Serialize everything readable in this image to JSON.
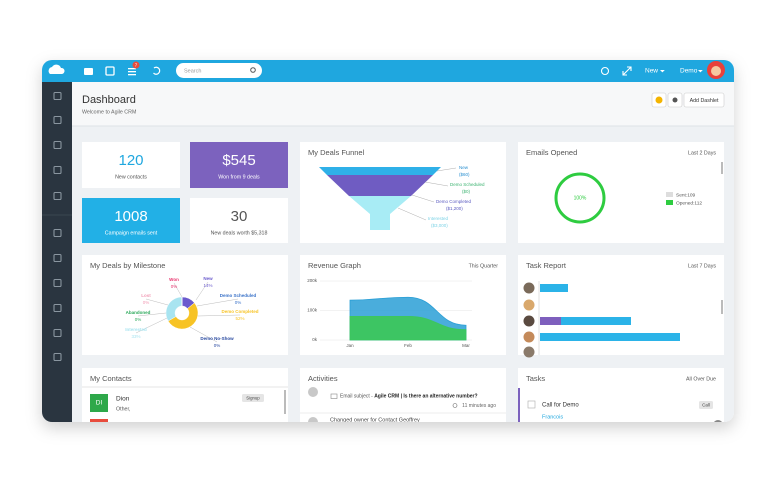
{
  "topbar": {
    "notification_count": "7",
    "search_placeholder": "Search",
    "new_menu": "New",
    "user_menu": "Demo"
  },
  "header": {
    "title": "Dashboard",
    "subtitle": "Welcome to Agile CRM",
    "add_button": "Add Dashlet"
  },
  "stats": [
    {
      "value": "120",
      "label": "New contacts"
    },
    {
      "value": "$545",
      "label": "Won from 9 deals"
    },
    {
      "value": "1008",
      "label": "Campaign emails sent"
    },
    {
      "value": "30",
      "label": "New deals worth $5,318"
    }
  ],
  "deals_funnel": {
    "title": "My Deals Funnel",
    "stages": [
      {
        "name": "New",
        "amount": "($60)"
      },
      {
        "name": "Demo Scheduled",
        "amount": "($0)"
      },
      {
        "name": "Demo Completed",
        "amount": "($1,200)"
      },
      {
        "name": "Interested",
        "amount": "($3,000)"
      }
    ]
  },
  "emails_opened": {
    "title": "Emails Opened",
    "period": "Last 2 Days",
    "rate": "100%",
    "legend": [
      "Sent:109",
      "Opened:112"
    ]
  },
  "deals_by_milestone": {
    "title": "My Deals by Milestone",
    "type": "donut",
    "categories": [
      "New",
      "Demo Completed",
      "Interested",
      "Won",
      "Lost",
      "Demo Scheduled",
      "Abandoned",
      "Demo No-Show"
    ],
    "values": [
      14,
      52,
      33,
      0,
      0,
      0,
      0,
      0
    ],
    "value_labels": [
      "14%",
      "52%",
      "33%",
      "0%",
      "0%",
      "0%",
      "0%",
      "0%"
    ],
    "colors": [
      "#6a5acd",
      "#f7c325",
      "#a8e4f0",
      "#e8336d",
      "#f29bb5",
      "#3a72c8",
      "#2eaa5c",
      "#2a4aa0"
    ]
  },
  "revenue_graph": {
    "title": "Revenue Graph",
    "period": "This Quarter",
    "type": "area",
    "categories": [
      "Jan",
      "Feb",
      "Mar"
    ],
    "series": [
      {
        "color": "#2a9fd6",
        "values": [
          135000,
          145000,
          50000
        ]
      },
      {
        "color": "#3cc65c",
        "values": [
          80000,
          80000,
          35000
        ]
      }
    ],
    "ylim": [
      0,
      200000
    ],
    "yticks": [
      {
        "value": 0,
        "label": "0k"
      },
      {
        "value": 100000,
        "label": "100k"
      },
      {
        "value": 200000,
        "label": "200k"
      }
    ]
  },
  "task_report": {
    "title": "Task Report",
    "period": "Last 7 Days",
    "rows": [
      [
        {
          "color": "#2bb3e8",
          "value": 4
        }
      ],
      [
        {
          "color": "#7e5fbd",
          "value": 3
        },
        {
          "color": "#2bb3e8",
          "value": 10
        }
      ],
      [
        {
          "color": "#2bb3e8",
          "value": 20
        }
      ]
    ]
  },
  "my_contacts": {
    "title": "My Contacts",
    "contacts": [
      {
        "initials": "DI",
        "name": "Dion",
        "company": "Other,",
        "tag": "Signup"
      }
    ]
  },
  "activities": {
    "title": "Activities",
    "items": [
      {
        "prefix": "Email subject - ",
        "text": "Agile CRM | Is there an alternative number?",
        "time": "11 minutes ago"
      },
      {
        "text": "Changed owner for Contact Geoffrey"
      }
    ]
  },
  "tasks": {
    "title": "Tasks",
    "filter": "All Over Due",
    "items": [
      {
        "title": "Call for Demo",
        "type": "Call",
        "owner": "Francois"
      }
    ]
  }
}
